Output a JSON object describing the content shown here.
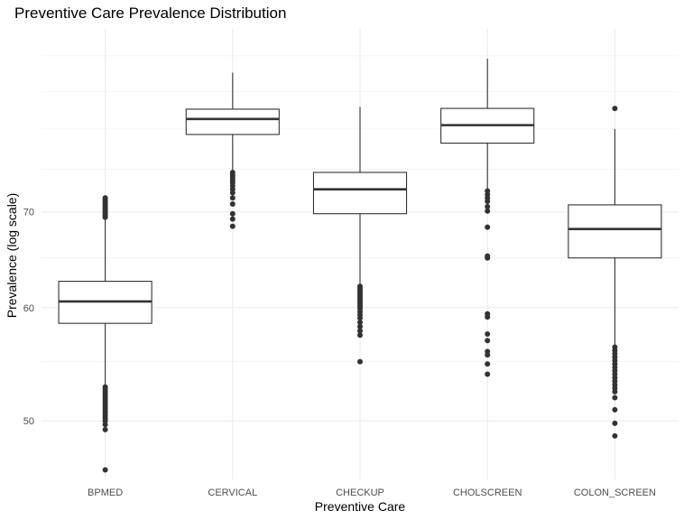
{
  "chart_data": {
    "type": "boxplot",
    "title": "Preventive Care Prevalence Distribution",
    "xlabel": "Preventive Care",
    "ylabel": "Prevalence (log scale)",
    "y_scale": "log",
    "ylim": [
      45.5,
      94
    ],
    "y_ticks": [
      50,
      60,
      70
    ],
    "y_minor_ticks": [
      55,
      65,
      75,
      80,
      85,
      90
    ],
    "grid": true,
    "categories": [
      "BPMED",
      "CERVICAL",
      "CHECKUP",
      "CHOLSCREEN",
      "COLON_SCREEN"
    ],
    "boxes": [
      {
        "category": "BPMED",
        "whisker_low": 53.0,
        "q1": 58.5,
        "median": 60.6,
        "q3": 62.6,
        "whisker_high": 69.2,
        "outliers": [
          71.6,
          71.4,
          71.2,
          71.0,
          70.8,
          70.6,
          70.4,
          70.2,
          70.0,
          69.8,
          69.6,
          69.4,
          52.8,
          52.6,
          52.4,
          52.2,
          52.0,
          51.8,
          51.6,
          51.4,
          51.2,
          51.0,
          50.8,
          50.6,
          50.4,
          50.2,
          50.0,
          49.7,
          49.3,
          46.2
        ]
      },
      {
        "category": "CERVICAL",
        "whisker_low": 74.9,
        "q1": 79.3,
        "median": 81.3,
        "q3": 82.6,
        "whisker_high": 87.6,
        "outliers": [
          74.6,
          74.3,
          74.0,
          73.7,
          73.4,
          73.0,
          72.6,
          72.2,
          71.6,
          70.9,
          69.8,
          69.2,
          68.4
        ]
      },
      {
        "category": "CHECKUP",
        "whisker_low": 62.3,
        "q1": 69.8,
        "median": 72.6,
        "q3": 74.6,
        "whisker_high": 82.9,
        "outliers": [
          62.1,
          61.9,
          61.7,
          61.5,
          61.3,
          61.1,
          60.9,
          60.7,
          60.5,
          60.3,
          60.1,
          59.9,
          59.6,
          59.3,
          59.0,
          58.6,
          58.2,
          57.8,
          57.4,
          55.0
        ]
      },
      {
        "category": "CHOLSCREEN",
        "whisker_low": 72.7,
        "q1": 78.2,
        "median": 80.5,
        "q3": 82.7,
        "whisker_high": 89.6,
        "outliers": [
          72.4,
          72.0,
          71.6,
          71.2,
          70.6,
          70.1,
          68.3,
          65.2,
          65.0,
          59.4,
          59.1,
          57.5,
          56.9,
          55.9,
          55.6,
          54.8,
          53.9
        ]
      },
      {
        "category": "COLON_SCREEN",
        "whisker_low": 56.4,
        "q1": 65.0,
        "median": 68.1,
        "q3": 70.8,
        "whisker_high": 80.0,
        "outliers": [
          82.7,
          56.3,
          56.0,
          55.7,
          55.4,
          55.1,
          54.8,
          54.5,
          54.2,
          53.9,
          53.6,
          53.3,
          53.0,
          52.7,
          52.4,
          51.9,
          50.9,
          49.8,
          48.8
        ]
      }
    ]
  }
}
